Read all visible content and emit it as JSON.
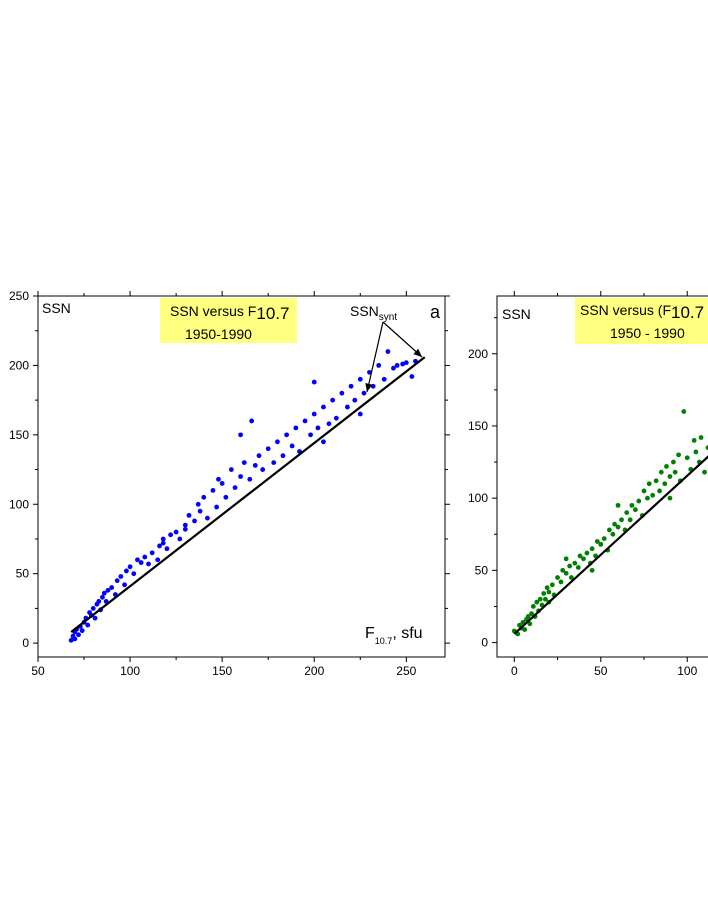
{
  "chart_data": [
    {
      "type": "scatter",
      "panel_label": "a",
      "title_line1": "SSN versus F",
      "title_sub": "10.7",
      "title_line2": "1950-1990",
      "ylabel": "SSN",
      "xlabel_main": "F",
      "xlabel_sub": "10.7",
      "xlabel_unit": ", sfu",
      "annotation_main": "SSN",
      "annotation_sub": "synt",
      "xlim": [
        50,
        271
      ],
      "ylim": [
        -10,
        250
      ],
      "xticks": [
        50,
        100,
        150,
        200,
        250
      ],
      "yticks": [
        0,
        50,
        100,
        150,
        200,
        250
      ],
      "grid": false,
      "point_color": "#0000ff",
      "title_box_color": "#ffff80",
      "points": [
        [
          68,
          2
        ],
        [
          69,
          5
        ],
        [
          70,
          3
        ],
        [
          70,
          8
        ],
        [
          71,
          10
        ],
        [
          72,
          6
        ],
        [
          73,
          12
        ],
        [
          74,
          9
        ],
        [
          75,
          15
        ],
        [
          76,
          18
        ],
        [
          77,
          13
        ],
        [
          78,
          22
        ],
        [
          79,
          20
        ],
        [
          80,
          25
        ],
        [
          81,
          18
        ],
        [
          82,
          28
        ],
        [
          83,
          30
        ],
        [
          84,
          24
        ],
        [
          85,
          33
        ],
        [
          86,
          36
        ],
        [
          87,
          30
        ],
        [
          88,
          38
        ],
        [
          90,
          40
        ],
        [
          92,
          35
        ],
        [
          93,
          45
        ],
        [
          95,
          48
        ],
        [
          97,
          42
        ],
        [
          98,
          52
        ],
        [
          100,
          55
        ],
        [
          102,
          50
        ],
        [
          104,
          60
        ],
        [
          106,
          58
        ],
        [
          108,
          62
        ],
        [
          110,
          57
        ],
        [
          112,
          65
        ],
        [
          115,
          60
        ],
        [
          116,
          70
        ],
        [
          118,
          72
        ],
        [
          120,
          68
        ],
        [
          122,
          78
        ],
        [
          125,
          80
        ],
        [
          127,
          75
        ],
        [
          130,
          85
        ],
        [
          132,
          92
        ],
        [
          135,
          88
        ],
        [
          137,
          100
        ],
        [
          138,
          95
        ],
        [
          140,
          105
        ],
        [
          142,
          90
        ],
        [
          145,
          110
        ],
        [
          147,
          98
        ],
        [
          150,
          115
        ],
        [
          152,
          105
        ],
        [
          155,
          125
        ],
        [
          157,
          112
        ],
        [
          160,
          120
        ],
        [
          162,
          130
        ],
        [
          165,
          118
        ],
        [
          166,
          160
        ],
        [
          168,
          128
        ],
        [
          170,
          135
        ],
        [
          172,
          125
        ],
        [
          175,
          140
        ],
        [
          178,
          130
        ],
        [
          180,
          145
        ],
        [
          183,
          135
        ],
        [
          185,
          150
        ],
        [
          188,
          142
        ],
        [
          190,
          155
        ],
        [
          192,
          138
        ],
        [
          195,
          160
        ],
        [
          198,
          150
        ],
        [
          200,
          165
        ],
        [
          202,
          155
        ],
        [
          205,
          170
        ],
        [
          208,
          158
        ],
        [
          210,
          175
        ],
        [
          212,
          162
        ],
        [
          215,
          180
        ],
        [
          218,
          170
        ],
        [
          220,
          185
        ],
        [
          222,
          175
        ],
        [
          225,
          190
        ],
        [
          227,
          180
        ],
        [
          230,
          195
        ],
        [
          232,
          185
        ],
        [
          235,
          200
        ],
        [
          238,
          190
        ],
        [
          240,
          210
        ],
        [
          243,
          198
        ],
        [
          245,
          200
        ],
        [
          248,
          201
        ],
        [
          250,
          202
        ],
        [
          253,
          192
        ],
        [
          255,
          203
        ],
        [
          118,
          75
        ],
        [
          130,
          82
        ],
        [
          148,
          118
        ],
        [
          160,
          150
        ],
        [
          200,
          188
        ],
        [
          205,
          145
        ],
        [
          225,
          165
        ]
      ],
      "fit_line": [
        [
          68,
          8
        ],
        [
          260,
          206
        ]
      ]
    },
    {
      "type": "scatter",
      "title_line1": "SSN  versus  (F",
      "title_sub": "10.7",
      "title_tail": " -",
      "title_line2": "1950 - 1990",
      "ylabel": "SSN",
      "xlim": [
        -10,
        112
      ],
      "ylim": [
        -10,
        240
      ],
      "xticks": [
        0,
        50,
        100
      ],
      "yticks": [
        0,
        50,
        100,
        150,
        200
      ],
      "grid": false,
      "point_color": "#008000",
      "title_box_color": "#ffff80",
      "points": [
        [
          0,
          8
        ],
        [
          2,
          6
        ],
        [
          3,
          12
        ],
        [
          4,
          10
        ],
        [
          5,
          14
        ],
        [
          6,
          9
        ],
        [
          7,
          16
        ],
        [
          8,
          18
        ],
        [
          9,
          13
        ],
        [
          10,
          20
        ],
        [
          11,
          25
        ],
        [
          12,
          18
        ],
        [
          13,
          28
        ],
        [
          14,
          22
        ],
        [
          15,
          30
        ],
        [
          16,
          26
        ],
        [
          17,
          34
        ],
        [
          18,
          30
        ],
        [
          19,
          38
        ],
        [
          20,
          35
        ],
        [
          22,
          40
        ],
        [
          23,
          33
        ],
        [
          25,
          45
        ],
        [
          27,
          42
        ],
        [
          28,
          50
        ],
        [
          30,
          48
        ],
        [
          32,
          53
        ],
        [
          33,
          45
        ],
        [
          35,
          55
        ],
        [
          37,
          52
        ],
        [
          38,
          60
        ],
        [
          40,
          58
        ],
        [
          42,
          62
        ],
        [
          44,
          55
        ],
        [
          45,
          65
        ],
        [
          47,
          60
        ],
        [
          48,
          70
        ],
        [
          50,
          68
        ],
        [
          52,
          72
        ],
        [
          54,
          64
        ],
        [
          55,
          78
        ],
        [
          57,
          75
        ],
        [
          58,
          82
        ],
        [
          60,
          80
        ],
        [
          62,
          85
        ],
        [
          64,
          78
        ],
        [
          65,
          90
        ],
        [
          67,
          85
        ],
        [
          68,
          95
        ],
        [
          70,
          92
        ],
        [
          72,
          98
        ],
        [
          74,
          88
        ],
        [
          75,
          105
        ],
        [
          77,
          100
        ],
        [
          78,
          110
        ],
        [
          80,
          102
        ],
        [
          82,
          112
        ],
        [
          84,
          105
        ],
        [
          85,
          118
        ],
        [
          87,
          110
        ],
        [
          88,
          122
        ],
        [
          90,
          115
        ],
        [
          92,
          125
        ],
        [
          93,
          118
        ],
        [
          95,
          130
        ],
        [
          96,
          112
        ],
        [
          98,
          160
        ],
        [
          100,
          128
        ],
        [
          102,
          120
        ],
        [
          104,
          140
        ],
        [
          105,
          132
        ],
        [
          107,
          125
        ],
        [
          108,
          142
        ],
        [
          110,
          118
        ],
        [
          112,
          135
        ],
        [
          113,
          128
        ],
        [
          20,
          28
        ],
        [
          30,
          58
        ],
        [
          45,
          50
        ],
        [
          60,
          95
        ],
        [
          90,
          100
        ]
      ],
      "fit_line": [
        [
          0,
          6
        ],
        [
          115,
          132
        ]
      ]
    }
  ]
}
